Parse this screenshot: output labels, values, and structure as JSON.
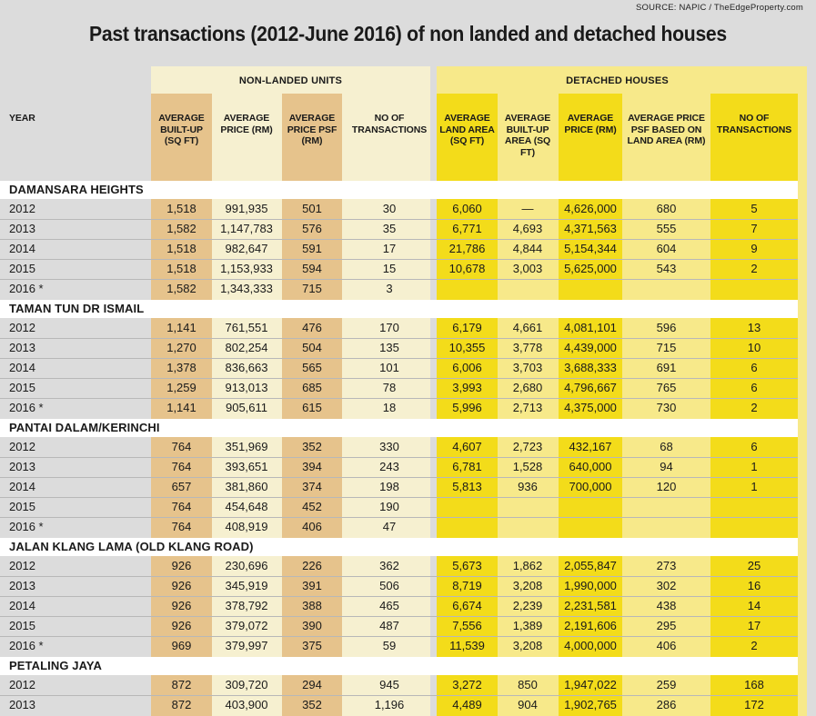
{
  "source": "SOURCE: NAPIC / TheEdgeProperty.com",
  "title": "Past transactions (2012-June 2016) of non landed and detached houses",
  "groups": {
    "non_landed": "NON-LANDED UNITS",
    "detached": "DETACHED HOUSES"
  },
  "headers": {
    "year": "YEAR",
    "nl_builtup": "AVERAGE BUILT-UP (SQ FT)",
    "nl_price": "AVERAGE PRICE (RM)",
    "nl_psf": "AVERAGE PRICE PSF (RM)",
    "nl_trans": "NO OF TRANSACTIONS",
    "dh_land": "AVERAGE LAND AREA (SQ FT)",
    "dh_builtup": "AVERAGE BUILT-UP AREA (SQ FT)",
    "dh_price": "AVERAGE PRICE (RM)",
    "dh_psf": "AVERAGE PRICE PSF BASED ON LAND AREA (RM)",
    "dh_trans": "NO OF TRANSACTIONS"
  },
  "sections": [
    {
      "name": "DAMANSARA HEIGHTS",
      "rows": [
        [
          "2012",
          "1,518",
          "991,935",
          "501",
          "30",
          "6,060",
          "—",
          "4,626,000",
          "680",
          "5"
        ],
        [
          "2013",
          "1,582",
          "1,147,783",
          "576",
          "35",
          "6,771",
          "4,693",
          "4,371,563",
          "555",
          "7"
        ],
        [
          "2014",
          "1,518",
          "982,647",
          "591",
          "17",
          "21,786",
          "4,844",
          "5,154,344",
          "604",
          "9"
        ],
        [
          "2015",
          "1,518",
          "1,153,933",
          "594",
          "15",
          "10,678",
          "3,003",
          "5,625,000",
          "543",
          "2"
        ],
        [
          "2016 *",
          "1,582",
          "1,343,333",
          "715",
          "3",
          "",
          "",
          "",
          "",
          ""
        ]
      ]
    },
    {
      "name": "TAMAN TUN DR ISMAIL",
      "rows": [
        [
          "2012",
          "1,141",
          "761,551",
          "476",
          "170",
          "6,179",
          "4,661",
          "4,081,101",
          "596",
          "13"
        ],
        [
          "2013",
          "1,270",
          "802,254",
          "504",
          "135",
          "10,355",
          "3,778",
          "4,439,000",
          "715",
          "10"
        ],
        [
          "2014",
          "1,378",
          "836,663",
          "565",
          "101",
          "6,006",
          "3,703",
          "3,688,333",
          "691",
          "6"
        ],
        [
          "2015",
          "1,259",
          "913,013",
          "685",
          "78",
          "3,993",
          "2,680",
          "4,796,667",
          "765",
          "6"
        ],
        [
          "2016 *",
          "1,141",
          "905,611",
          "615",
          "18",
          "5,996",
          "2,713",
          "4,375,000",
          "730",
          "2"
        ]
      ]
    },
    {
      "name": "PANTAI DALAM/KERINCHI",
      "rows": [
        [
          "2012",
          "764",
          "351,969",
          "352",
          "330",
          "4,607",
          "2,723",
          "432,167",
          "68",
          "6"
        ],
        [
          "2013",
          "764",
          "393,651",
          "394",
          "243",
          "6,781",
          "1,528",
          "640,000",
          "94",
          "1"
        ],
        [
          "2014",
          "657",
          "381,860",
          "374",
          "198",
          "5,813",
          "936",
          "700,000",
          "120",
          "1"
        ],
        [
          "2015",
          "764",
          "454,648",
          "452",
          "190",
          "",
          "",
          "",
          "",
          ""
        ],
        [
          "2016 *",
          "764",
          "408,919",
          "406",
          "47",
          "",
          "",
          "",
          "",
          ""
        ]
      ]
    },
    {
      "name": "JALAN KLANG LAMA (OLD KLANG ROAD)",
      "rows": [
        [
          "2012",
          "926",
          "230,696",
          "226",
          "362",
          "5,673",
          "1,862",
          "2,055,847",
          "273",
          "25"
        ],
        [
          "2013",
          "926",
          "345,919",
          "391",
          "506",
          "8,719",
          "3,208",
          "1,990,000",
          "302",
          "16"
        ],
        [
          "2014",
          "926",
          "378,792",
          "388",
          "465",
          "6,674",
          "2,239",
          "2,231,581",
          "438",
          "14"
        ],
        [
          "2015",
          "926",
          "379,072",
          "390",
          "487",
          "7,556",
          "1,389",
          "2,191,606",
          "295",
          "17"
        ],
        [
          "2016 *",
          "969",
          "379,997",
          "375",
          "59",
          "11,539",
          "3,208",
          "4,000,000",
          "406",
          "2"
        ]
      ]
    },
    {
      "name": "PETALING JAYA",
      "rows": [
        [
          "2012",
          "872",
          "309,720",
          "294",
          "945",
          "3,272",
          "850",
          "1,947,022",
          "259",
          "168"
        ],
        [
          "2013",
          "872",
          "403,900",
          "352",
          "1,196",
          "4,489",
          "904",
          "1,902,765",
          "286",
          "172"
        ]
      ]
    }
  ]
}
